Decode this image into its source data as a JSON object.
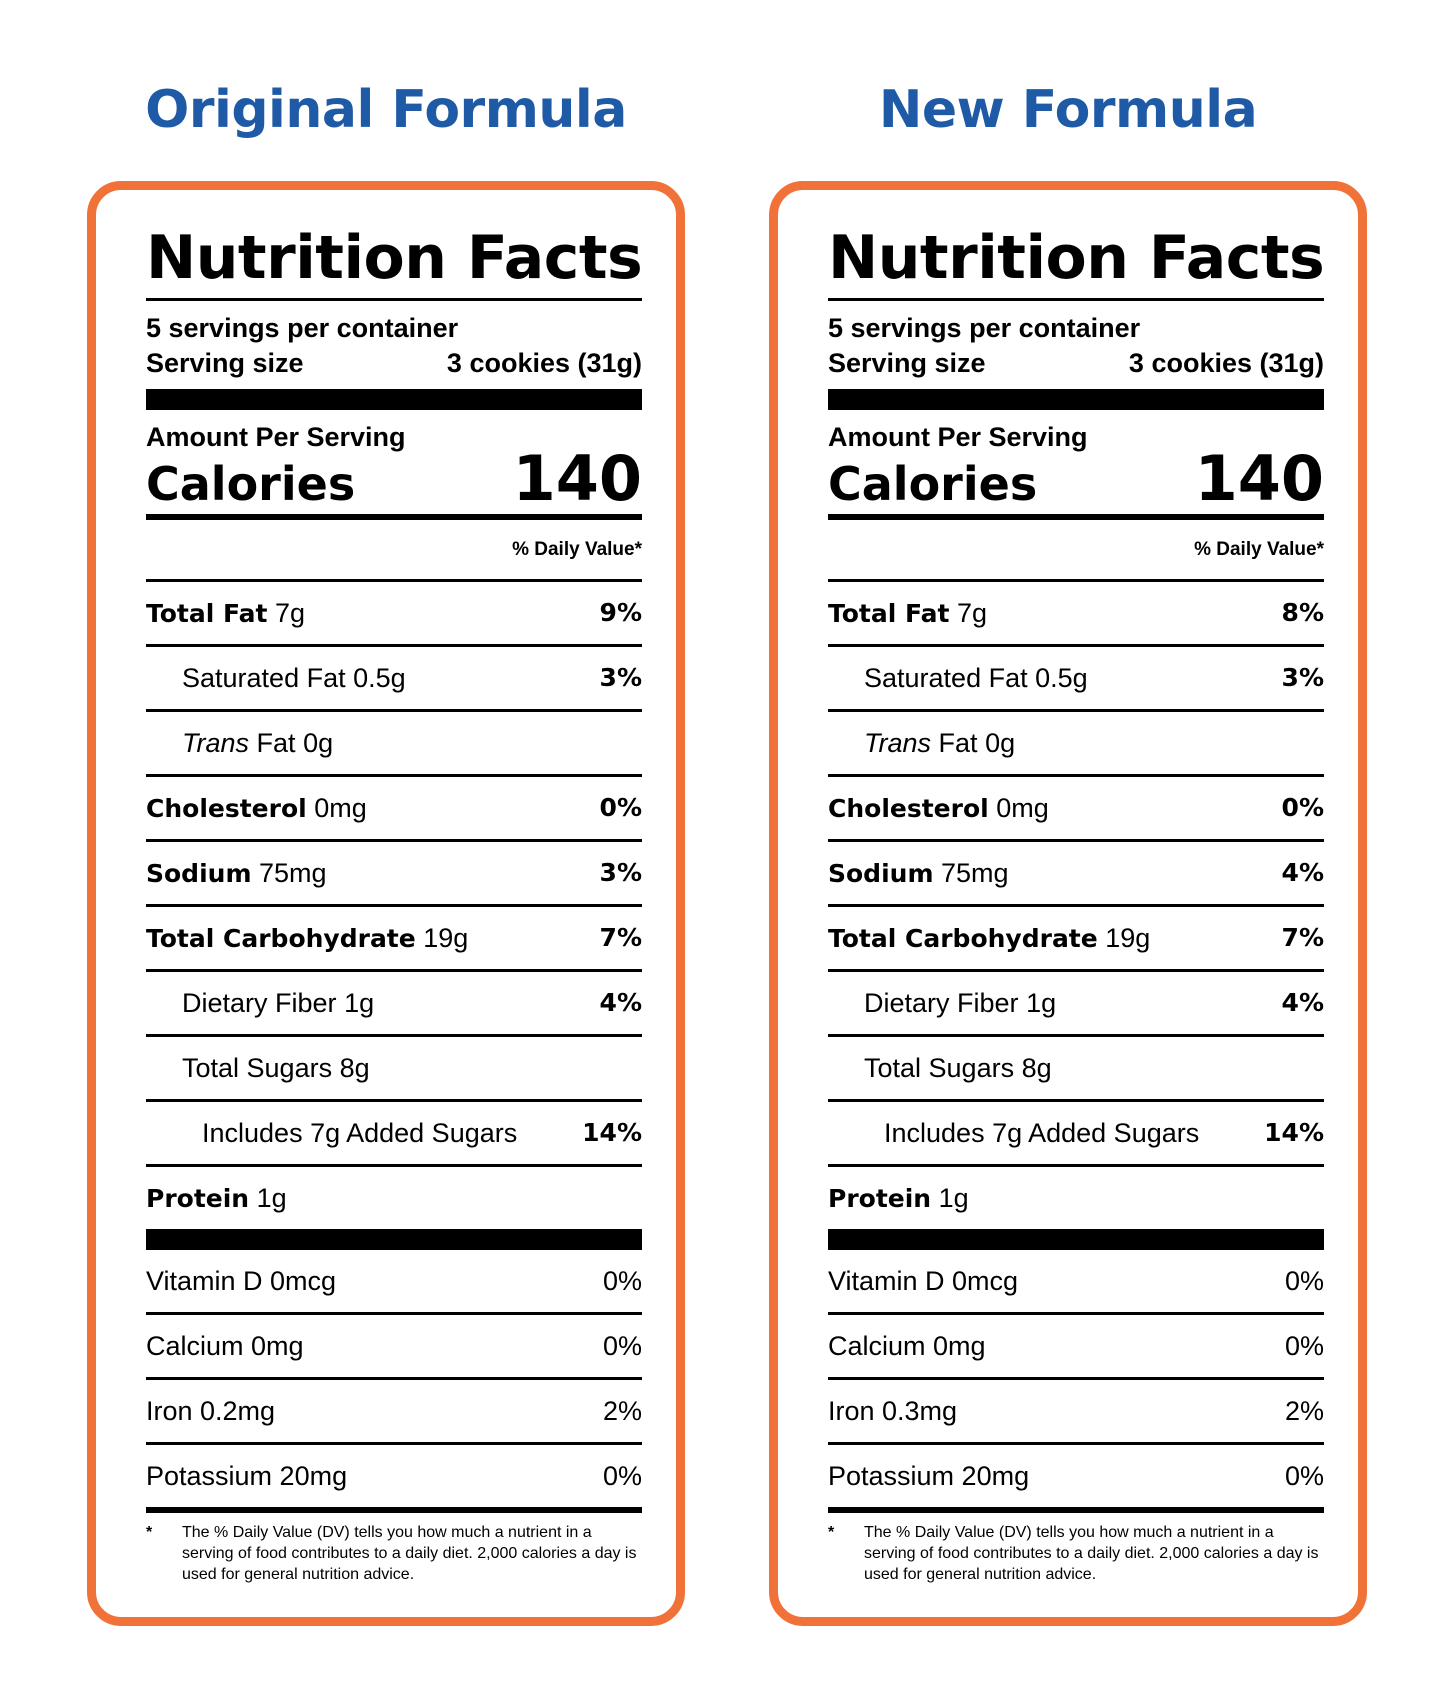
{
  "columns": [
    {
      "heading": "Original Formula",
      "label": {
        "title": "Nutrition Facts",
        "servings_per_container": "5 servings per container",
        "serving_size_label": "Serving size",
        "serving_size_value": "3 cookies (31g)",
        "amount_per_serving": "Amount Per Serving",
        "calories_label": "Calories",
        "calories_value": "140",
        "daily_value_header": "% Daily Value*",
        "total_fat": {
          "name": "Total Fat",
          "amount": "7g",
          "dv": "9%"
        },
        "saturated_fat": {
          "name": "Saturated Fat",
          "amount": "0.5g",
          "dv": "3%"
        },
        "trans_fat": {
          "prefix": "Trans",
          "name": "Fat",
          "amount": "0g"
        },
        "cholesterol": {
          "name": "Cholesterol",
          "amount": "0mg",
          "dv": "0%"
        },
        "sodium": {
          "name": "Sodium",
          "amount": "75mg",
          "dv": "3%"
        },
        "total_carbohydrate": {
          "name": "Total Carbohydrate",
          "amount": "19g",
          "dv": "7%"
        },
        "dietary_fiber": {
          "name": "Dietary Fiber",
          "amount": "1g",
          "dv": "4%"
        },
        "total_sugars": {
          "name": "Total Sugars",
          "amount": "8g"
        },
        "added_sugars": {
          "text": "Includes 7g Added Sugars",
          "dv": "14%"
        },
        "protein": {
          "name": "Protein",
          "amount": "1g"
        },
        "vitamin_d": {
          "text": "Vitamin D 0mcg",
          "dv": "0%"
        },
        "calcium": {
          "text": "Calcium 0mg",
          "dv": "0%"
        },
        "iron": {
          "text": "Iron 0.2mg",
          "dv": "2%"
        },
        "potassium": {
          "text": "Potassium 20mg",
          "dv": "0%"
        },
        "footnote_star": "*",
        "footnote_text": "The % Daily Value (DV) tells you how much a nutrient in a serving of food contributes to a daily diet. 2,000 calories a day is used for general nutrition advice."
      }
    },
    {
      "heading": "New Formula",
      "label": {
        "title": "Nutrition Facts",
        "servings_per_container": "5 servings per container",
        "serving_size_label": "Serving size",
        "serving_size_value": "3 cookies (31g)",
        "amount_per_serving": "Amount Per Serving",
        "calories_label": "Calories",
        "calories_value": "140",
        "daily_value_header": "% Daily Value*",
        "total_fat": {
          "name": "Total Fat",
          "amount": "7g",
          "dv": "8%"
        },
        "saturated_fat": {
          "name": "Saturated Fat",
          "amount": "0.5g",
          "dv": "3%"
        },
        "trans_fat": {
          "prefix": "Trans",
          "name": "Fat",
          "amount": "0g"
        },
        "cholesterol": {
          "name": "Cholesterol",
          "amount": "0mg",
          "dv": "0%"
        },
        "sodium": {
          "name": "Sodium",
          "amount": "75mg",
          "dv": "4%"
        },
        "total_carbohydrate": {
          "name": "Total Carbohydrate",
          "amount": "19g",
          "dv": "7%"
        },
        "dietary_fiber": {
          "name": "Dietary Fiber",
          "amount": "1g",
          "dv": "4%"
        },
        "total_sugars": {
          "name": "Total Sugars",
          "amount": "8g"
        },
        "added_sugars": {
          "text": "Includes 7g Added Sugars",
          "dv": "14%"
        },
        "protein": {
          "name": "Protein",
          "amount": "1g"
        },
        "vitamin_d": {
          "text": "Vitamin D 0mcg",
          "dv": "0%"
        },
        "calcium": {
          "text": "Calcium 0mg",
          "dv": "0%"
        },
        "iron": {
          "text": "Iron 0.3mg",
          "dv": "2%"
        },
        "potassium": {
          "text": "Potassium 20mg",
          "dv": "0%"
        },
        "footnote_star": "*",
        "footnote_text": "The % Daily Value (DV) tells you how much a nutrient in a serving of food contributes to a daily diet. 2,000 calories a day is used for general nutrition advice."
      }
    }
  ],
  "colors": {
    "heading": "#1f5aa6",
    "panel_border": "#f07238",
    "text": "#000000"
  }
}
